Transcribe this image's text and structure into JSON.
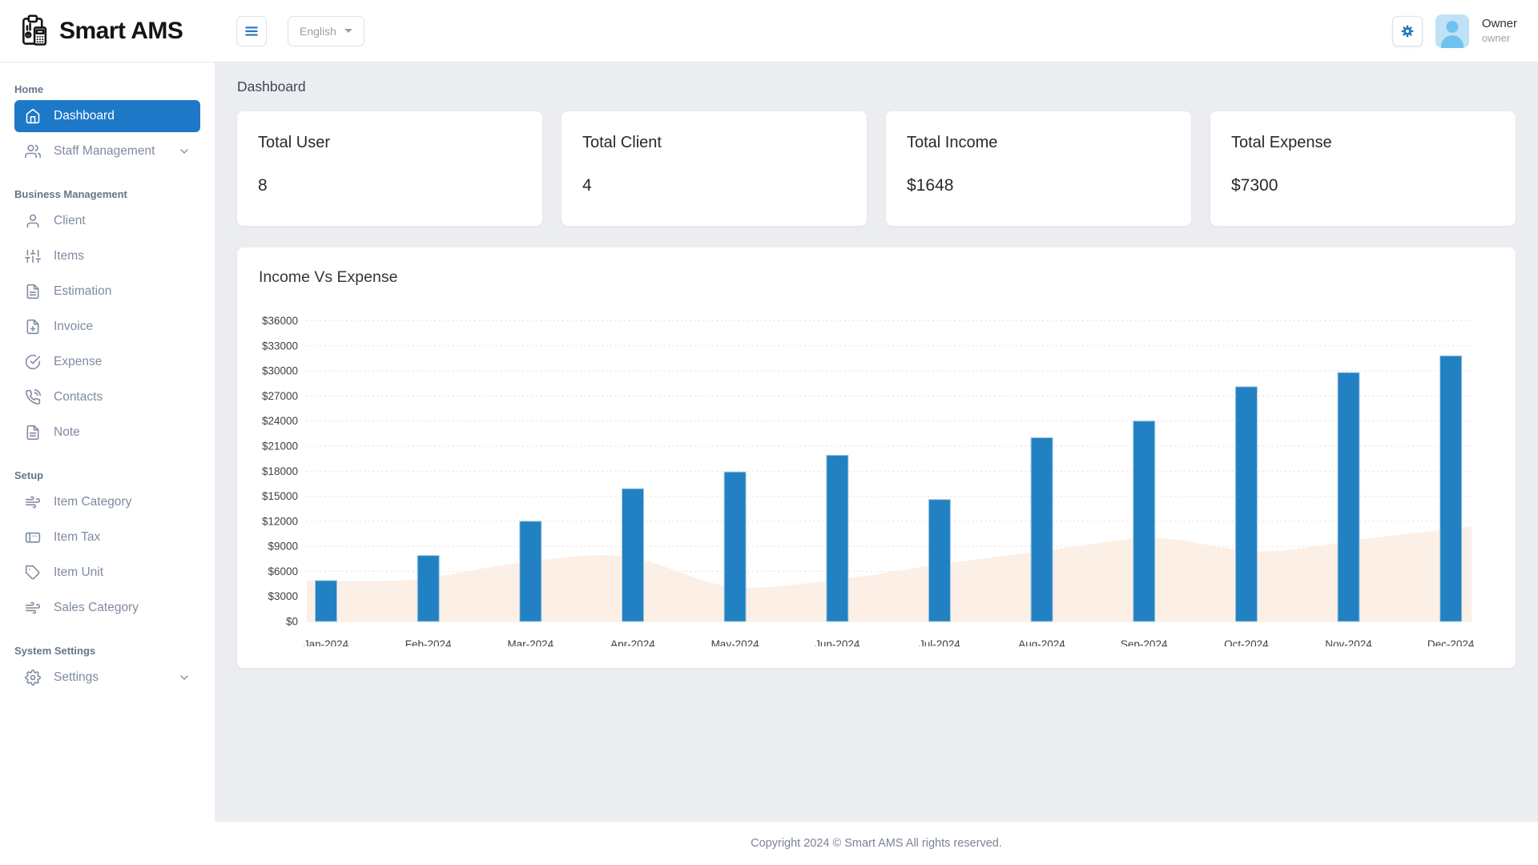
{
  "brand": {
    "name": "Smart AMS"
  },
  "topbar": {
    "language": "English",
    "user": {
      "name": "Owner",
      "role": "owner"
    }
  },
  "sidebar": {
    "sections": [
      {
        "label": "Home",
        "items": [
          {
            "label": "Dashboard",
            "icon": "home",
            "active": true
          },
          {
            "label": "Staff Management",
            "icon": "users",
            "chevron": true
          }
        ]
      },
      {
        "label": "Business Management",
        "items": [
          {
            "label": "Client",
            "icon": "user"
          },
          {
            "label": "Items",
            "icon": "sliders"
          },
          {
            "label": "Estimation",
            "icon": "file-text"
          },
          {
            "label": "Invoice",
            "icon": "file-plus"
          },
          {
            "label": "Expense",
            "icon": "check-circle"
          },
          {
            "label": "Contacts",
            "icon": "phone"
          },
          {
            "label": "Note",
            "icon": "file-text"
          }
        ]
      },
      {
        "label": "Setup",
        "items": [
          {
            "label": "Item Category",
            "icon": "wind"
          },
          {
            "label": "Item Tax",
            "icon": "card"
          },
          {
            "label": "Item Unit",
            "icon": "tag"
          },
          {
            "label": "Sales Category",
            "icon": "wind"
          }
        ]
      },
      {
        "label": "System Settings",
        "items": [
          {
            "label": "Settings",
            "icon": "settings",
            "chevron": true
          }
        ]
      }
    ]
  },
  "page": {
    "title": "Dashboard"
  },
  "stats": [
    {
      "label": "Total User",
      "value": "8"
    },
    {
      "label": "Total Client",
      "value": "4"
    },
    {
      "label": "Total Income",
      "value": "$1648"
    },
    {
      "label": "Total Expense",
      "value": "$7300"
    }
  ],
  "chart_data": {
    "type": "bar",
    "title": "Income Vs Expense",
    "categories": [
      "Jan-2024",
      "Feb-2024",
      "Mar-2024",
      "Apr-2024",
      "May-2024",
      "Jun-2024",
      "Jul-2024",
      "Aug-2024",
      "Sep-2024",
      "Oct-2024",
      "Nov-2024",
      "Dec-2024"
    ],
    "series": [
      {
        "name": "Income",
        "render": "bar",
        "color": "#2181c2",
        "values": [
          4900,
          7900,
          12000,
          15900,
          17900,
          19900,
          14600,
          22000,
          24000,
          28100,
          29800,
          31800
        ]
      },
      {
        "name": "Expense",
        "render": "area",
        "color": "#fcefe6",
        "values": [
          4900,
          5000,
          7000,
          7800,
          4200,
          5000,
          6900,
          8500,
          10000,
          8400,
          9900,
          11400
        ]
      }
    ],
    "ylim": [
      0,
      36000
    ],
    "ytick_step": 3000,
    "ytick_prefix": "$",
    "grid": "dotted-horizontal",
    "legend": "none",
    "axis_label_color": "#3b3f46",
    "grid_color": "#d8d8d8",
    "bar_stroke": "#a3c8e2"
  },
  "footer": {
    "text": "Copyright 2024 © Smart AMS All rights reserved."
  }
}
